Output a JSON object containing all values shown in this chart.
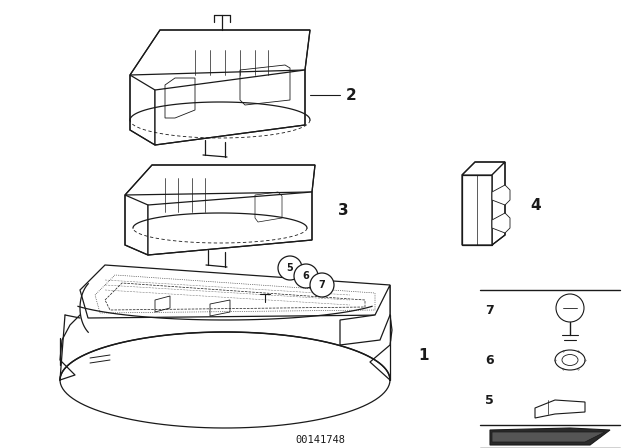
{
  "bg_color": "#ffffff",
  "line_color": "#1a1a1a",
  "watermark": "00141748",
  "fig_width": 6.4,
  "fig_height": 4.48,
  "dpi": 100
}
